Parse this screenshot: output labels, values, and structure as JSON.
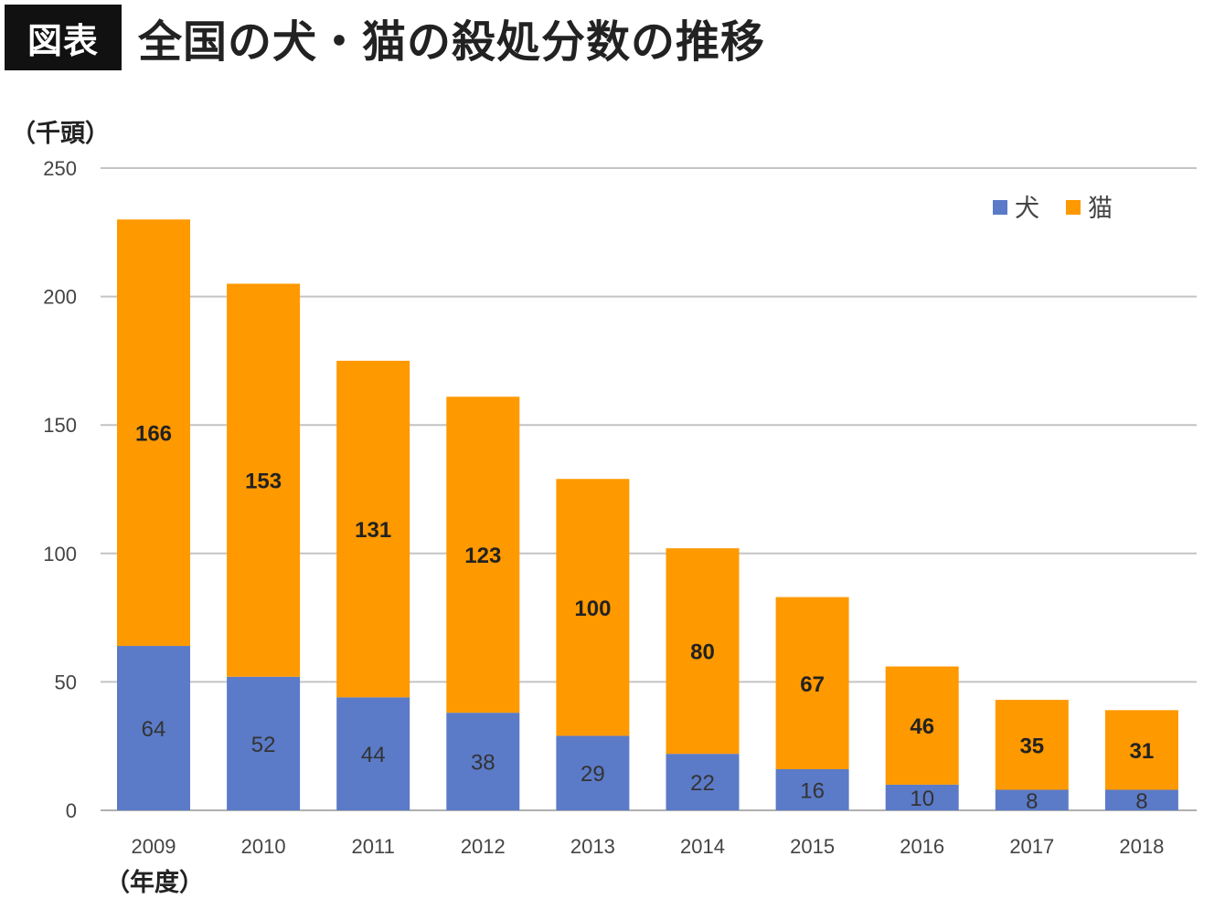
{
  "header": {
    "badge": "図表",
    "title": "全国の犬・猫の殺処分数の推移"
  },
  "chart_data": {
    "type": "bar",
    "stacked": true,
    "title": "全国の犬・猫の殺処分数の推移",
    "ylabel": "（千頭）",
    "xlabel": "（年度）",
    "ylim": [
      0,
      250
    ],
    "yticks": [
      0,
      50,
      100,
      150,
      200,
      250
    ],
    "grid": true,
    "legend_position": "top-right",
    "categories": [
      "2009",
      "2010",
      "2011",
      "2012",
      "2013",
      "2014",
      "2015",
      "2016",
      "2017",
      "2018"
    ],
    "series": [
      {
        "name": "犬",
        "color": "#5b7bc8",
        "values": [
          64,
          52,
          44,
          38,
          29,
          22,
          16,
          10,
          8,
          8
        ]
      },
      {
        "name": "猫",
        "color": "#ff9900",
        "values": [
          166,
          153,
          131,
          123,
          100,
          80,
          67,
          46,
          35,
          31
        ]
      }
    ]
  }
}
